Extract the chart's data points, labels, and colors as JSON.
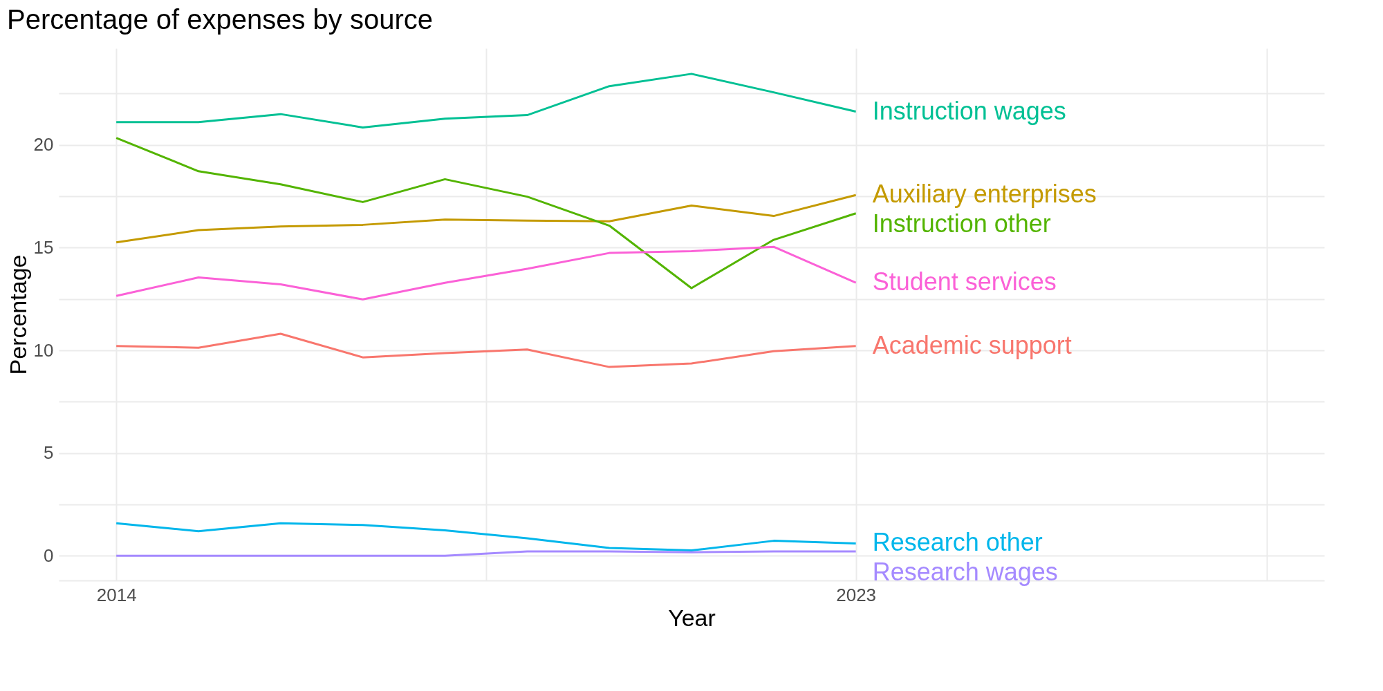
{
  "chart_data": {
    "type": "line",
    "title": "Percentage of expenses by source",
    "xlabel": "Year",
    "ylabel": "Percentage",
    "x": [
      2014,
      2015,
      2016,
      2017,
      2018,
      2019,
      2020,
      2021,
      2022,
      2023
    ],
    "xlim": [
      2013.3,
      2028.7
    ],
    "xticks": [
      2014,
      {
        "value": 2018.5,
        "label": null
      },
      2023,
      {
        "value": 2028,
        "label": null
      }
    ],
    "ylim": [
      -1.2,
      24.7
    ],
    "yticks": [
      {
        "value": -1.2,
        "label": null
      },
      0,
      {
        "value": 2.5,
        "label": null
      },
      5,
      {
        "value": 7.5,
        "label": null
      },
      10,
      {
        "value": 12.5,
        "label": null
      },
      15,
      {
        "value": 17.5,
        "label": null
      },
      20,
      {
        "value": 22.5,
        "label": null
      }
    ],
    "grid": true,
    "legend": false,
    "marker": "none",
    "line_style": "solid",
    "series": [
      {
        "name": "Academic support",
        "color": "#f8766d",
        "values": [
          10.21,
          10.13,
          10.81,
          9.66,
          9.87,
          10.04,
          9.19,
          9.36,
          9.96,
          10.21
        ]
      },
      {
        "name": "Auxiliary enterprises",
        "color": "#c49a00",
        "values": [
          15.26,
          15.85,
          16.03,
          16.11,
          16.37,
          16.32,
          16.28,
          17.05,
          16.54,
          17.56
        ]
      },
      {
        "name": "Instruction other",
        "color": "#53b400",
        "values": [
          20.34,
          18.72,
          18.08,
          17.22,
          18.33,
          17.48,
          16.07,
          13.03,
          15.38,
          16.67
        ]
      },
      {
        "name": "Instruction wages",
        "color": "#00c094",
        "values": [
          21.11,
          21.11,
          21.5,
          20.85,
          21.28,
          21.45,
          22.86,
          23.46,
          22.56,
          21.62
        ]
      },
      {
        "name": "Research other",
        "color": "#00b6eb",
        "values": [
          1.58,
          1.2,
          1.58,
          1.5,
          1.24,
          0.85,
          0.38,
          0.26,
          0.73,
          0.6
        ]
      },
      {
        "name": "Research wages",
        "color": "#a58aff",
        "values": [
          0,
          0,
          0,
          0,
          0,
          0.21,
          0.21,
          0.17,
          0.21,
          0.21
        ]
      },
      {
        "name": "Student services",
        "color": "#fb61d7",
        "values": [
          12.65,
          13.55,
          13.21,
          12.48,
          13.29,
          13.97,
          14.74,
          14.83,
          15.04,
          13.29
        ]
      }
    ]
  }
}
